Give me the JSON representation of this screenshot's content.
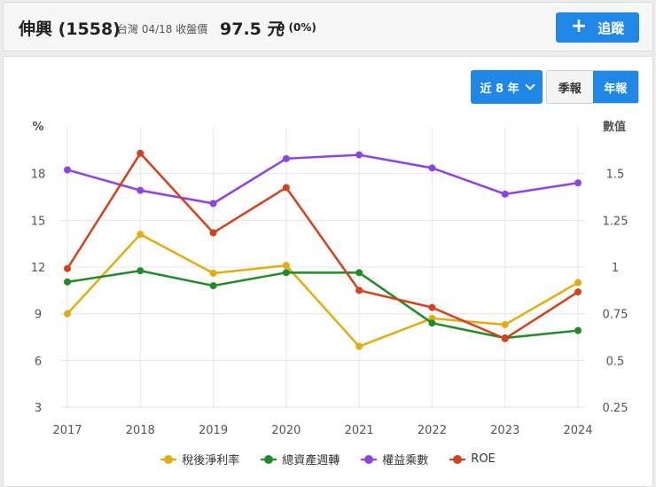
{
  "header": {
    "stock_name": "伸興 (1558)",
    "meta": "台灣 04/18 收盤價",
    "price": "97.5 元",
    "change": "0 (0%)",
    "track_label": "追蹤"
  },
  "controls": {
    "range_label": "近 8 年",
    "quarterly_label": "季報",
    "annual_label": "年報",
    "active": "annual"
  },
  "chart_data": {
    "type": "line",
    "x": [
      "2017",
      "2018",
      "2019",
      "2020",
      "2021",
      "2022",
      "2023",
      "2024"
    ],
    "left_axis": {
      "label": "%",
      "ticks": [
        "3",
        "6",
        "9",
        "12",
        "15",
        "18"
      ],
      "range": [
        3,
        21
      ]
    },
    "right_axis": {
      "label": "數值",
      "ticks": [
        "0.25",
        "0.5",
        "0.75",
        "1",
        "1.25",
        "1.5"
      ],
      "range": [
        0.25,
        1.75
      ]
    },
    "grid": true,
    "legend_position": "bottom",
    "series": [
      {
        "name": "稅後淨利率",
        "axis": "left",
        "color": "#e5ac0f",
        "values": [
          9.0,
          14.1,
          11.6,
          12.1,
          6.9,
          8.7,
          8.3,
          11.0
        ]
      },
      {
        "name": "總資產週轉",
        "axis": "right",
        "color": "#1f8c26",
        "values": [
          0.92,
          0.98,
          0.9,
          0.97,
          0.97,
          0.7,
          0.62,
          0.66
        ]
      },
      {
        "name": "權益乘數",
        "axis": "right",
        "color": "#8e43e7",
        "values": [
          1.52,
          1.41,
          1.34,
          1.58,
          1.6,
          1.53,
          1.39,
          1.45
        ]
      },
      {
        "name": "ROE",
        "axis": "left",
        "color": "#d6401a",
        "values": [
          11.9,
          19.3,
          14.2,
          17.1,
          10.5,
          9.4,
          7.4,
          10.4
        ]
      }
    ]
  }
}
